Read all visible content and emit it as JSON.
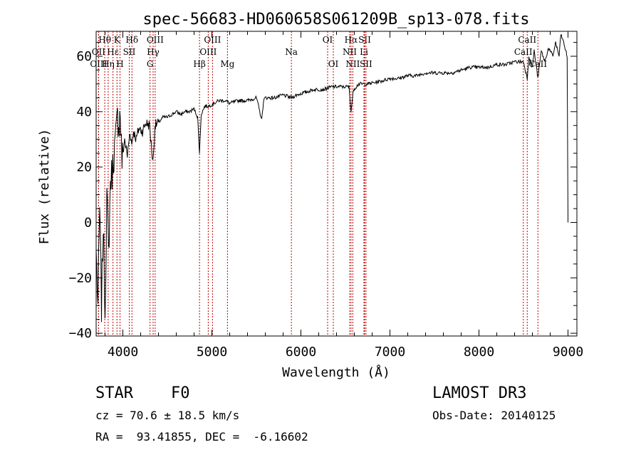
{
  "chart_data": {
    "type": "line",
    "title": "spec-56683-HD060658S061209B_sp13-078.fits",
    "xlabel": "Wavelength (Å)",
    "ylabel": "Flux (relative)",
    "xlim": [
      3700,
      9100
    ],
    "ylim": [
      -41,
      69
    ],
    "xticks": [
      4000,
      5000,
      6000,
      7000,
      8000,
      9000
    ],
    "xtick_labels": [
      "4000",
      "5000",
      "6000",
      "7000",
      "8000",
      "9000"
    ],
    "yticks": [
      -40,
      -20,
      0,
      20,
      40,
      60
    ],
    "ytick_labels": [
      "−40",
      "−20",
      "0",
      "20",
      "40",
      "60"
    ],
    "series": [
      {
        "name": "flux",
        "x": [
          3700,
          3720,
          3740,
          3760,
          3780,
          3800,
          3820,
          3840,
          3860,
          3880,
          3900,
          3920,
          3940,
          3960,
          3970,
          3990,
          4020,
          4050,
          4080,
          4100,
          4120,
          4150,
          4180,
          4220,
          4260,
          4300,
          4330,
          4340,
          4360,
          4400,
          4450,
          4500,
          4550,
          4600,
          4650,
          4700,
          4750,
          4800,
          4840,
          4861,
          4880,
          4920,
          4970,
          5020,
          5080,
          5150,
          5200,
          5300,
          5400,
          5500,
          5560,
          5580,
          5600,
          5700,
          5800,
          5890,
          5950,
          6050,
          6150,
          6250,
          6350,
          6450,
          6540,
          6563,
          6590,
          6650,
          6750,
          6900,
          7000,
          7100,
          7200,
          7300,
          7400,
          7500,
          7600,
          7700,
          7800,
          7900,
          8000,
          8100,
          8200,
          8300,
          8400,
          8500,
          8542,
          8560,
          8600,
          8620,
          8662,
          8700,
          8740,
          8780,
          8830,
          8860,
          8900,
          8920,
          8950,
          8975,
          8990,
          9000
        ],
        "y": [
          -10,
          -30,
          5,
          -30,
          0,
          -33,
          10,
          -12,
          15,
          18,
          25,
          30,
          38,
          36,
          40,
          22,
          30,
          24,
          33,
          28,
          33,
          30,
          34,
          33,
          36,
          35,
          24,
          22,
          35,
          36,
          38,
          38,
          39,
          40,
          39,
          40,
          40,
          41,
          38,
          25,
          39,
          42,
          42,
          43,
          44,
          44,
          43,
          44,
          44,
          45,
          37,
          44,
          45,
          45,
          46,
          45,
          46,
          47,
          48,
          48,
          49,
          49,
          49,
          40,
          48,
          50,
          50,
          51,
          52,
          52,
          53,
          53,
          54,
          54,
          54,
          54,
          55,
          56,
          56,
          56,
          57,
          57,
          58,
          58,
          52,
          60,
          56,
          62,
          52,
          62,
          58,
          63,
          60,
          65,
          60,
          68,
          65,
          62,
          60,
          0
        ]
      }
    ],
    "lines": [
      {
        "label": "Hθ",
        "wavelength": 3797,
        "row": 0
      },
      {
        "label": "OII",
        "wavelength": 3727,
        "row": 1
      },
      {
        "label": "OIII",
        "wavelength": 3727,
        "row": 2
      },
      {
        "label": "Hε",
        "wavelength": 3889,
        "row": 1
      },
      {
        "label": "Hη",
        "wavelength": 3835,
        "row": 2
      },
      {
        "label": "K",
        "wavelength": 3934,
        "row": 0
      },
      {
        "label": "SII",
        "wavelength": 4072,
        "row": 1
      },
      {
        "label": "H",
        "wavelength": 3968,
        "row": 2
      },
      {
        "label": "Hδ",
        "wavelength": 4102,
        "row": 0
      },
      {
        "label": "OIII",
        "wavelength": 4363,
        "row": 0
      },
      {
        "label": "Hγ",
        "wavelength": 4340,
        "row": 1
      },
      {
        "label": "G",
        "wavelength": 4305,
        "row": 2
      },
      {
        "label": "OIII",
        "wavelength": 5007,
        "row": 0
      },
      {
        "label": "OIII",
        "wavelength": 4959,
        "row": 1
      },
      {
        "label": "Hβ",
        "wavelength": 4861,
        "row": 2
      },
      {
        "label": "Mg",
        "wavelength": 5175,
        "row": 2
      },
      {
        "label": "Na",
        "wavelength": 5893,
        "row": 1
      },
      {
        "label": "OI",
        "wavelength": 6300,
        "row": 0
      },
      {
        "label": "OI",
        "wavelength": 6364,
        "row": 2
      },
      {
        "label": "Hα",
        "wavelength": 6563,
        "row": 0
      },
      {
        "label": "NII",
        "wavelength": 6548,
        "row": 1
      },
      {
        "label": "NII",
        "wavelength": 6583,
        "row": 2
      },
      {
        "label": "SII",
        "wavelength": 6716,
        "row": 0
      },
      {
        "label": "Li",
        "wavelength": 6708,
        "row": 1
      },
      {
        "label": "SII",
        "wavelength": 6731,
        "row": 2
      },
      {
        "label": "CaII",
        "wavelength": 8542,
        "row": 0
      },
      {
        "label": "CaII",
        "wavelength": 8498,
        "row": 1
      },
      {
        "label": "CaII",
        "wavelength": 8662,
        "row": 2
      }
    ]
  },
  "info": {
    "object_class": "STAR",
    "subclass": "F0",
    "survey": "LAMOST DR3",
    "velocity": "cz = 70.6 ± 18.5 km/s",
    "obs_date": "Obs-Date: 20140125",
    "coords": "RA =  93.41855, DEC =  -6.16602"
  },
  "colors": {
    "spectrum": "#000000",
    "line_marker": "#c00000",
    "axis": "#000000"
  }
}
